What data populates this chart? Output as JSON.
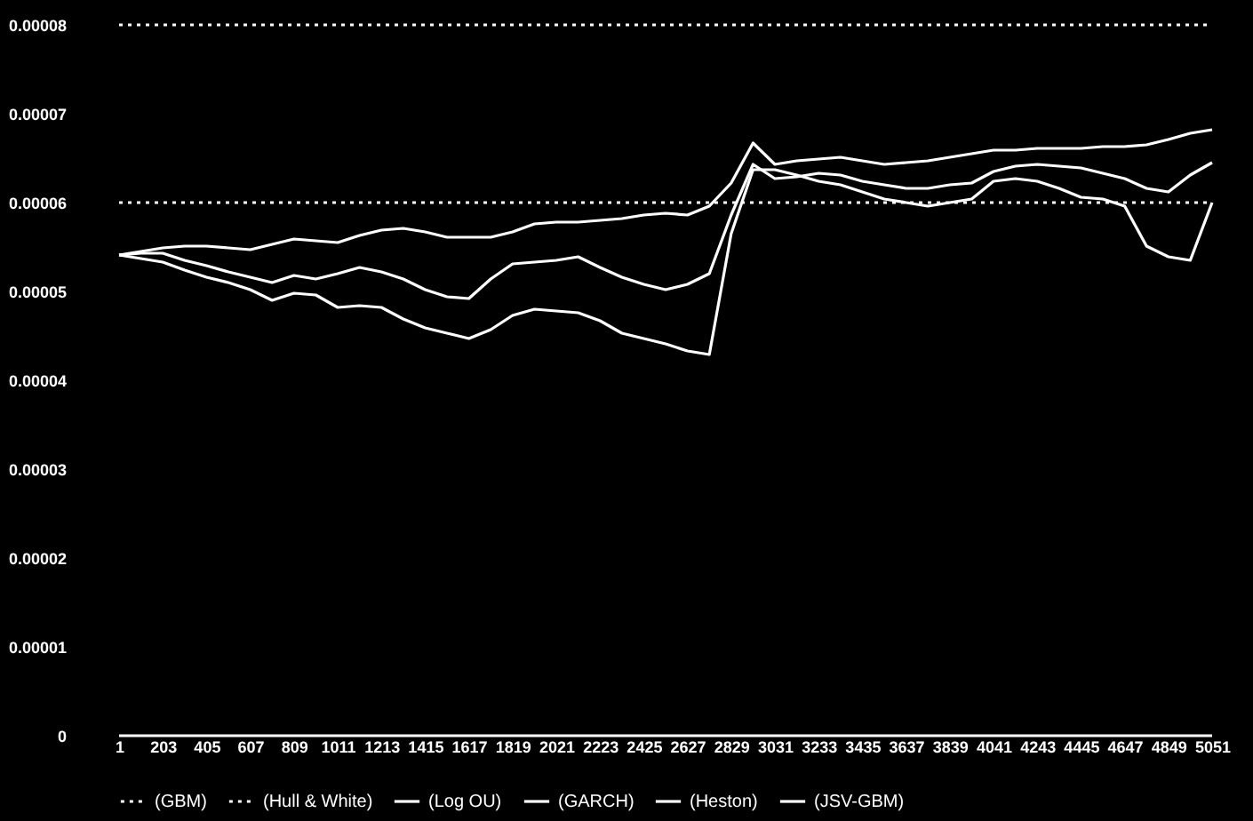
{
  "chart_data": {
    "type": "line",
    "categories": [
      "1",
      null,
      "203",
      null,
      "405",
      null,
      "607",
      null,
      "809",
      null,
      "1011",
      null,
      "1213",
      null,
      "1415",
      null,
      "1617",
      null,
      "1819",
      null,
      "2021",
      null,
      "2223",
      null,
      "2425",
      null,
      "2627",
      null,
      "2829",
      null,
      "3031",
      null,
      "3233",
      null,
      "3435",
      null,
      "3637",
      null,
      "3839",
      null,
      "4041",
      null,
      "4243",
      null,
      "4445",
      null,
      "4647",
      null,
      "4849",
      null,
      "5051"
    ],
    "ylim": [
      0,
      8e-05
    ],
    "yticks": [
      0,
      {
        "value": 1e-05,
        "label": "0.00001"
      },
      {
        "value": 2e-05,
        "label": "0.00002"
      },
      {
        "value": 3e-05,
        "label": "0.00003"
      },
      {
        "value": 4e-05,
        "label": "0.00004"
      },
      {
        "value": 5e-05,
        "label": "0.00005"
      },
      {
        "value": 6e-05,
        "label": "0.00006"
      },
      {
        "value": 7e-05,
        "label": "0.00007"
      },
      {
        "value": 8e-05,
        "label": "0.00008"
      }
    ],
    "legend": "bottom",
    "grid": false,
    "marker": "none",
    "series": [
      {
        "name": "(GBM)",
        "color": "#ffffff",
        "line_style": "dotted",
        "values": [
          8e-05,
          8e-05,
          8e-05,
          8e-05,
          8e-05,
          8e-05,
          8e-05,
          8e-05,
          8e-05,
          8e-05,
          8e-05,
          8e-05,
          8e-05,
          8e-05,
          8e-05,
          8e-05,
          8e-05,
          8e-05,
          8e-05,
          8e-05,
          8e-05,
          8e-05,
          8e-05,
          8e-05,
          8e-05,
          8e-05,
          8e-05,
          8e-05,
          8e-05,
          8e-05,
          8e-05,
          8e-05,
          8e-05,
          8e-05,
          8e-05,
          8e-05,
          8e-05,
          8e-05,
          8e-05,
          8e-05,
          8e-05,
          8e-05,
          8e-05,
          8e-05,
          8e-05,
          8e-05,
          8e-05,
          8e-05,
          8e-05,
          8e-05,
          8e-05
        ]
      },
      {
        "name": "(Hull & White)",
        "color": "#ffffff",
        "line_style": "dotted",
        "values": [
          6e-05,
          6e-05,
          6e-05,
          6e-05,
          6e-05,
          6e-05,
          6e-05,
          6e-05,
          6e-05,
          6e-05,
          6e-05,
          6e-05,
          6e-05,
          6e-05,
          6e-05,
          6e-05,
          6e-05,
          6e-05,
          6e-05,
          6e-05,
          6e-05,
          6e-05,
          6e-05,
          6e-05,
          6e-05,
          6e-05,
          6e-05,
          6e-05,
          6e-05,
          6e-05,
          6e-05,
          6e-05,
          6e-05,
          6e-05,
          6e-05,
          6e-05,
          6e-05,
          6e-05,
          6e-05,
          6e-05,
          6e-05,
          6e-05,
          6e-05,
          6e-05,
          6e-05,
          6e-05,
          6e-05,
          6e-05,
          6e-05,
          6e-05,
          6e-05
        ]
      },
      {
        "name": "(Log OU)",
        "color": "#ffffff",
        "line_style": "solid",
        "values": [
          0,
          0,
          0,
          0,
          0,
          0,
          0,
          0,
          0,
          0,
          0,
          0,
          0,
          0,
          0,
          0,
          0,
          0,
          0,
          0,
          0,
          0,
          0,
          0,
          0,
          0,
          0,
          0,
          0,
          0,
          0,
          0,
          0,
          0,
          0,
          0,
          0,
          0,
          0,
          0,
          0,
          0,
          0,
          0,
          0,
          0,
          0,
          0,
          0,
          0,
          0
        ]
      },
      {
        "name": "(GARCH)",
        "color": "#ffffff",
        "line_style": "solid",
        "values": [
          5.41e-05,
          5.43e-05,
          5.43e-05,
          5.35e-05,
          5.29e-05,
          5.22e-05,
          5.16e-05,
          5.1e-05,
          5.18e-05,
          5.14e-05,
          5.2e-05,
          5.27e-05,
          5.22e-05,
          5.14e-05,
          5.02e-05,
          4.94e-05,
          4.92e-05,
          5.14e-05,
          5.31e-05,
          5.33e-05,
          5.35e-05,
          5.39e-05,
          5.27e-05,
          5.16e-05,
          5.08e-05,
          5.02e-05,
          5.08e-05,
          5.2e-05,
          5.86e-05,
          6.43e-05,
          6.27e-05,
          6.29e-05,
          6.33e-05,
          6.31e-05,
          6.24e-05,
          6.2e-05,
          6.16e-05,
          6.16e-05,
          6.2e-05,
          6.22e-05,
          6.35e-05,
          6.41e-05,
          6.43e-05,
          6.41e-05,
          6.39e-05,
          6.33e-05,
          6.27e-05,
          6.16e-05,
          6.12e-05,
          6.31e-05,
          6.45e-05
        ]
      },
      {
        "name": "(Heston)",
        "color": "#ffffff",
        "line_style": "solid",
        "values": [
          5.41e-05,
          5.45e-05,
          5.49e-05,
          5.51e-05,
          5.51e-05,
          5.49e-05,
          5.47e-05,
          5.53e-05,
          5.59e-05,
          5.57e-05,
          5.55e-05,
          5.63e-05,
          5.69e-05,
          5.71e-05,
          5.67e-05,
          5.61e-05,
          5.61e-05,
          5.61e-05,
          5.67e-05,
          5.76e-05,
          5.78e-05,
          5.78e-05,
          5.8e-05,
          5.82e-05,
          5.86e-05,
          5.88e-05,
          5.86e-05,
          5.96e-05,
          6.22e-05,
          6.67e-05,
          6.43e-05,
          6.47e-05,
          6.49e-05,
          6.51e-05,
          6.47e-05,
          6.43e-05,
          6.45e-05,
          6.47e-05,
          6.51e-05,
          6.55e-05,
          6.59e-05,
          6.59e-05,
          6.61e-05,
          6.61e-05,
          6.61e-05,
          6.63e-05,
          6.63e-05,
          6.65e-05,
          6.71e-05,
          6.78e-05,
          6.82e-05
        ]
      },
      {
        "name": "(JSV-GBM)",
        "color": "#ffffff",
        "line_style": "solid",
        "values": [
          5.41e-05,
          5.37e-05,
          5.33e-05,
          5.24e-05,
          5.16e-05,
          5.1e-05,
          5.02e-05,
          4.9e-05,
          4.98e-05,
          4.96e-05,
          4.82e-05,
          4.84e-05,
          4.82e-05,
          4.69e-05,
          4.59e-05,
          4.53e-05,
          4.47e-05,
          4.57e-05,
          4.73e-05,
          4.8e-05,
          4.78e-05,
          4.76e-05,
          4.67e-05,
          4.53e-05,
          4.47e-05,
          4.41e-05,
          4.33e-05,
          4.29e-05,
          5.65e-05,
          6.37e-05,
          6.37e-05,
          6.31e-05,
          6.24e-05,
          6.2e-05,
          6.12e-05,
          6.04e-05,
          6e-05,
          5.96e-05,
          6e-05,
          6.04e-05,
          6.24e-05,
          6.27e-05,
          6.24e-05,
          6.16e-05,
          6.06e-05,
          6.04e-05,
          5.96e-05,
          5.51e-05,
          5.39e-05,
          5.35e-05,
          6e-05
        ]
      }
    ]
  }
}
